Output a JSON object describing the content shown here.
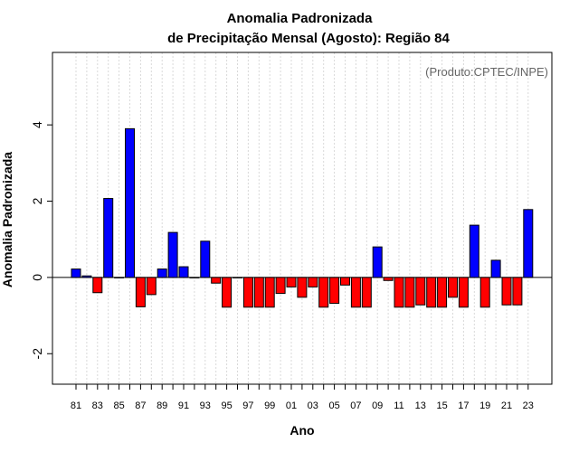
{
  "chart_data": {
    "type": "bar",
    "title_line1": "Anomalia Padronizada",
    "title_line2": "de Precipitação Mensal (Agosto): Região 84",
    "xlabel": "Ano",
    "ylabel": "Anomalia Padronizada",
    "credit": "(Produto:CPTEC/INPE)",
    "ylim": [
      -2.8,
      5.9
    ],
    "yticks": [
      "-2",
      "0",
      "2",
      "4"
    ],
    "ytick_values": [
      -2,
      0,
      2,
      4
    ],
    "grid": "vertical dotted",
    "categories": [
      "81",
      "82",
      "83",
      "84",
      "85",
      "86",
      "87",
      "88",
      "89",
      "90",
      "91",
      "92",
      "93",
      "94",
      "95",
      "96",
      "97",
      "98",
      "99",
      "00",
      "01",
      "02",
      "03",
      "04",
      "05",
      "06",
      "07",
      "08",
      "09",
      "10",
      "11",
      "12",
      "13",
      "14",
      "15",
      "16",
      "17",
      "18",
      "19",
      "20",
      "21",
      "22",
      "23"
    ],
    "xtick_labels": [
      "81",
      "83",
      "85",
      "87",
      "89",
      "91",
      "93",
      "95",
      "97",
      "99",
      "01",
      "03",
      "05",
      "07",
      "09",
      "11",
      "13",
      "15",
      "17",
      "19",
      "21",
      "23"
    ],
    "values": [
      0.22,
      0.04,
      -0.4,
      2.07,
      0.0,
      3.9,
      -0.77,
      -0.45,
      0.22,
      1.18,
      0.28,
      0.0,
      0.95,
      -0.15,
      -0.78,
      0.0,
      -0.78,
      -0.78,
      -0.78,
      -0.42,
      -0.25,
      -0.52,
      -0.25,
      -0.78,
      -0.68,
      -0.2,
      -0.78,
      -0.78,
      0.8,
      -0.08,
      -0.78,
      -0.78,
      -0.72,
      -0.78,
      -0.78,
      -0.52,
      -0.78,
      1.37,
      -0.78,
      0.45,
      -0.72,
      -0.72,
      1.78
    ],
    "colors": {
      "positive": "#0000ff",
      "negative": "#ff0000",
      "outline": "#000000",
      "grid": "#d9d9d9"
    }
  }
}
